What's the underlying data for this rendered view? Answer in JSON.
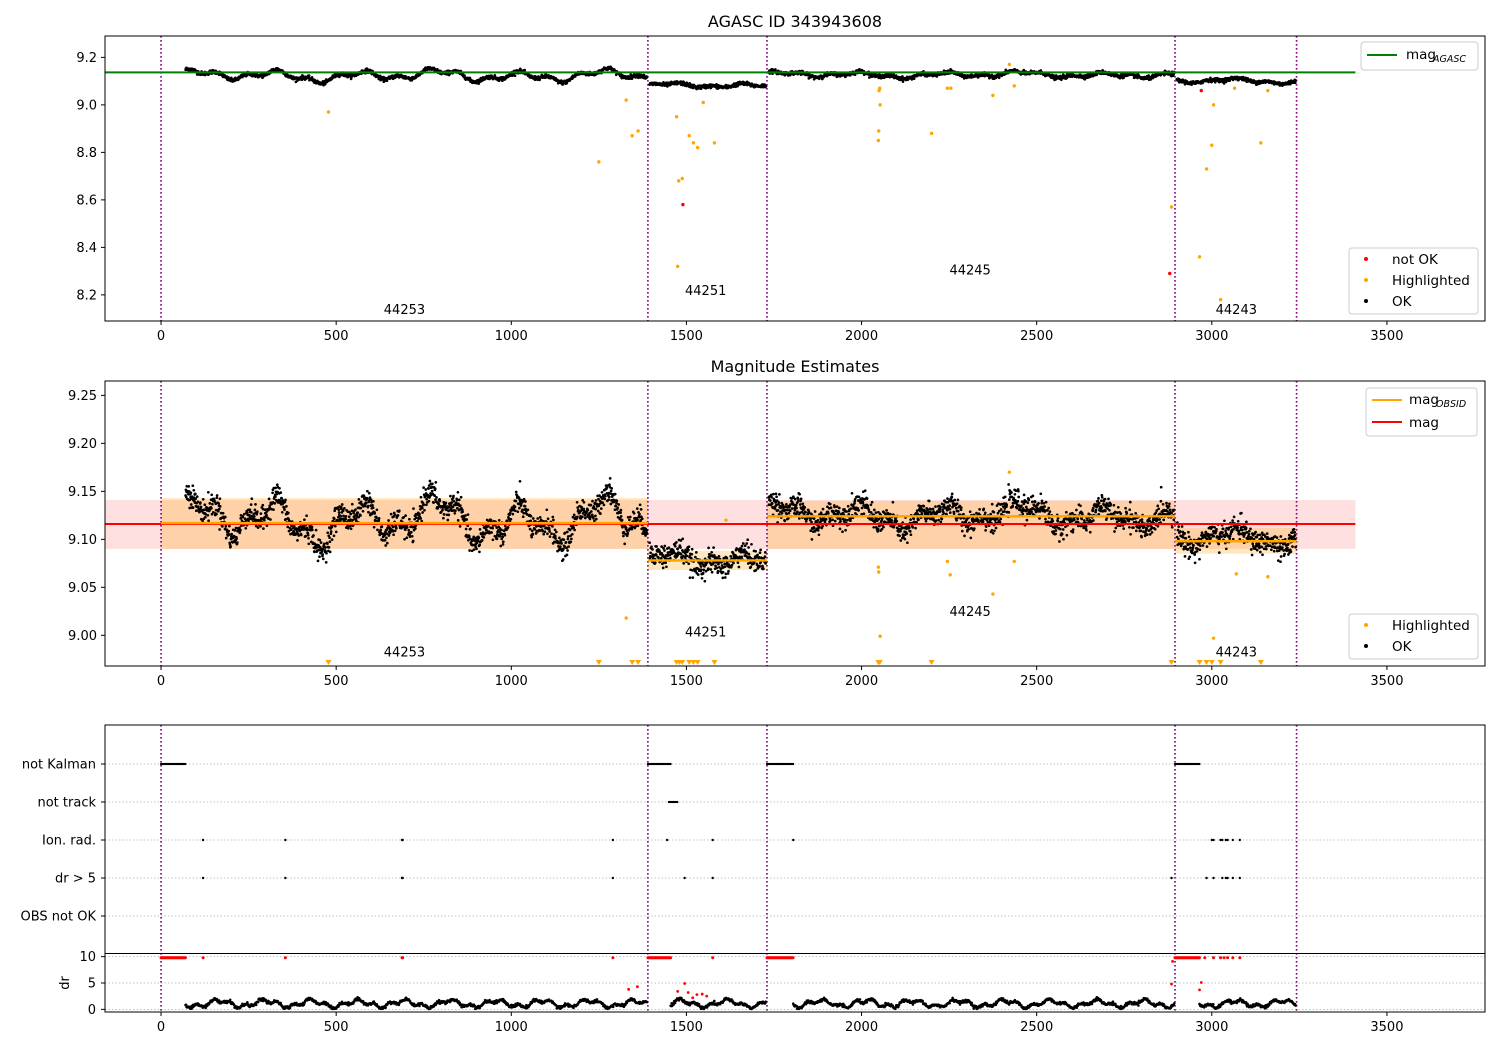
{
  "chart_data": [
    {
      "type": "scatter",
      "title": "AGASC ID 343943608",
      "xlim": [
        -160,
        3780
      ],
      "ylim": [
        8.09,
        9.29
      ],
      "xticks": [
        0,
        500,
        1000,
        1500,
        2000,
        2500,
        3000,
        3500
      ],
      "yticks": [
        8.2,
        8.4,
        8.6,
        8.8,
        9.0,
        9.2
      ],
      "obs_boundaries": [
        0,
        1390,
        1730,
        2895,
        3242
      ],
      "obs_labels": [
        {
          "obsid": "44253",
          "x": 695,
          "y": 8.12
        },
        {
          "obsid": "44251",
          "x": 1555,
          "y": 8.2
        },
        {
          "obsid": "44245",
          "x": 2310,
          "y": 8.285
        },
        {
          "obsid": "44243",
          "x": 3070,
          "y": 8.12
        }
      ],
      "hlines": [
        {
          "name": "mag_AGASC",
          "y": 9.137,
          "x": [
            -160,
            3410
          ],
          "color": "#008000"
        }
      ],
      "segments": [
        {
          "x0": 70,
          "x1": 1388,
          "level": 9.123,
          "amp": 0.03
        },
        {
          "x0": 1395,
          "x1": 1728,
          "level": 9.08,
          "amp": 0.013
        },
        {
          "x0": 1735,
          "x1": 2893,
          "level": 9.127,
          "amp": 0.016
        },
        {
          "x0": 2900,
          "x1": 3240,
          "level": 9.1,
          "amp": 0.013
        }
      ],
      "highlighted": [
        [
          478,
          8.97
        ],
        [
          1250,
          8.76
        ],
        [
          1328,
          9.02
        ],
        [
          1345,
          8.87
        ],
        [
          1362,
          8.89
        ],
        [
          1472,
          8.95
        ],
        [
          1475,
          8.32
        ],
        [
          1478,
          8.68
        ],
        [
          1488,
          8.69
        ],
        [
          1508,
          8.87
        ],
        [
          1520,
          8.84
        ],
        [
          1532,
          8.82
        ],
        [
          1548,
          9.01
        ],
        [
          1580,
          8.84
        ],
        [
          2048,
          8.85
        ],
        [
          2049,
          8.89
        ],
        [
          2050,
          9.06
        ],
        [
          2052,
          9.07
        ],
        [
          2053,
          9.0
        ],
        [
          2200,
          8.88
        ],
        [
          2245,
          9.07
        ],
        [
          2255,
          9.07
        ],
        [
          2375,
          9.04
        ],
        [
          2436,
          9.08
        ],
        [
          2422,
          9.17
        ],
        [
          2885,
          8.57
        ],
        [
          2965,
          8.36
        ],
        [
          2985,
          8.73
        ],
        [
          3000,
          8.83
        ],
        [
          3005,
          9.0
        ],
        [
          3025,
          8.18
        ],
        [
          3065,
          9.07
        ],
        [
          3140,
          8.84
        ],
        [
          3160,
          9.06
        ]
      ],
      "not_ok": [
        [
          1490,
          8.58
        ],
        [
          2880,
          8.29
        ],
        [
          2970,
          9.06
        ]
      ],
      "legend": {
        "position": "lower right",
        "entries": [
          {
            "label": "not OK",
            "color": "#ff0000"
          },
          {
            "label": "Highlighted",
            "color": "#ffa500"
          },
          {
            "label": "OK",
            "color": "#000000"
          }
        ]
      },
      "legend_top": {
        "position": "upper right",
        "entries": [
          {
            "label": "mag",
            "sub": "AGASC",
            "color": "#008000"
          }
        ]
      }
    },
    {
      "type": "scatter",
      "title": "Magnitude Estimates",
      "xlim": [
        -160,
        3780
      ],
      "ylim": [
        8.968,
        9.265
      ],
      "xticks": [
        0,
        500,
        1000,
        1500,
        2000,
        2500,
        3000,
        3500
      ],
      "yticks": [
        9.0,
        9.05,
        9.1,
        9.15,
        9.2,
        9.25
      ],
      "obs_boundaries": [
        0,
        1390,
        1730,
        2895,
        3242
      ],
      "obs_labels": [
        {
          "obsid": "44253",
          "x": 695,
          "y": 8.978
        },
        {
          "obsid": "44251",
          "x": 1555,
          "y": 8.999
        },
        {
          "obsid": "44245",
          "x": 2310,
          "y": 9.02
        },
        {
          "obsid": "44243",
          "x": 3070,
          "y": 8.978
        }
      ],
      "mag": {
        "name": "mag",
        "y": 9.116,
        "band": [
          9.09,
          9.141
        ],
        "x": [
          -160,
          3410
        ],
        "color": "#ff0000"
      },
      "obsid_mags": [
        {
          "x0": 0,
          "x1": 1390,
          "y": 9.117,
          "band": [
            9.09,
            9.143
          ]
        },
        {
          "x0": 1390,
          "x1": 1730,
          "y": 9.078,
          "band": [
            9.068,
            9.088
          ]
        },
        {
          "x0": 1730,
          "x1": 2895,
          "y": 9.124,
          "band": [
            9.09,
            9.14
          ]
        },
        {
          "x0": 2895,
          "x1": 3242,
          "y": 9.098,
          "band": [
            9.085,
            9.112
          ]
        }
      ],
      "segments": [
        {
          "x0": 70,
          "x1": 1388,
          "level": 9.12,
          "amp": 0.03
        },
        {
          "x0": 1395,
          "x1": 1728,
          "level": 9.077,
          "amp": 0.013
        },
        {
          "x0": 1735,
          "x1": 2893,
          "level": 9.125,
          "amp": 0.016
        },
        {
          "x0": 2900,
          "x1": 3240,
          "level": 9.1,
          "amp": 0.012
        }
      ],
      "highlighted": [
        [
          1328,
          9.018
        ],
        [
          2048,
          9.071
        ],
        [
          2049,
          9.066
        ],
        [
          2053,
          8.999
        ],
        [
          2245,
          9.077
        ],
        [
          2253,
          9.063
        ],
        [
          2375,
          9.043
        ],
        [
          2436,
          9.077
        ],
        [
          2422,
          9.17
        ],
        [
          3005,
          8.997
        ],
        [
          3070,
          9.064
        ],
        [
          3160,
          9.061
        ],
        [
          1613,
          9.12
        ]
      ],
      "below_axis": [
        478,
        1250,
        1345,
        1362,
        1472,
        1480,
        1488,
        1508,
        1520,
        1532,
        1580,
        2048,
        2052,
        2200,
        2885,
        2965,
        2985,
        3000,
        3025,
        3140
      ],
      "legend": {
        "position": "lower right",
        "entries": [
          {
            "label": "Highlighted",
            "color": "#ffa500"
          },
          {
            "label": "OK",
            "color": "#000000"
          }
        ]
      },
      "legend_top": {
        "position": "upper right",
        "entries": [
          {
            "label": "mag",
            "sub": "OBSID",
            "color": "#ffa500"
          },
          {
            "label": "mag",
            "sub": "",
            "color": "#ff0000"
          }
        ]
      }
    },
    {
      "type": "scatter",
      "title": "",
      "xlim": [
        -160,
        3780
      ],
      "xticks": [
        0,
        500,
        1000,
        1500,
        2000,
        2500,
        3000,
        3500
      ],
      "obs_boundaries": [
        0,
        1390,
        1730,
        2895,
        3242
      ],
      "flag_rows": [
        "not Kalman",
        "not track",
        "Ion. rad.",
        "dr > 5",
        "OBS not OK"
      ],
      "flags": {
        "not Kalman": [
          [
            0,
            70
          ],
          [
            1390,
            1455
          ],
          [
            1730,
            1805
          ],
          [
            2895,
            2965
          ]
        ],
        "not track": [
          [
            1450,
            1475
          ]
        ],
        "Ion. rad.": [
          120,
          355,
          688,
          690,
          1290,
          1445,
          1575,
          1805,
          3000,
          3005,
          3025,
          3030,
          3040,
          3045,
          3060,
          3080
        ],
        "dr > 5": [
          120,
          355,
          688,
          690,
          1290,
          1495,
          1575,
          2885,
          2985,
          3005,
          3030,
          3040,
          3045,
          3060,
          3080
        ],
        "OBS not OK": []
      },
      "dr_ylabel": "dr",
      "dr_yticks": [
        0,
        5,
        10
      ],
      "dr_ylim": [
        -0.5,
        10.5
      ],
      "dr_segments": [
        [
          70,
          1388
        ],
        [
          1455,
          1728
        ],
        [
          1805,
          2893
        ],
        [
          2965,
          3240
        ]
      ],
      "dr_clipped": [
        [
          0,
          70
        ],
        [
          1390,
          1455
        ],
        [
          1730,
          1805
        ],
        [
          2895,
          2965
        ],
        120,
        355,
        688,
        690,
        1290,
        1575,
        2980,
        3005,
        3025,
        3035,
        3045,
        3060,
        3080
      ],
      "dr_red": [
        [
          1335,
          3.8
        ],
        [
          1360,
          4.3
        ],
        [
          1475,
          3.4
        ],
        [
          1495,
          4.9
        ],
        [
          1505,
          3.2
        ],
        [
          1518,
          2.2
        ],
        [
          1530,
          2.8
        ],
        [
          1545,
          2.9
        ],
        [
          1558,
          2.5
        ],
        [
          2888,
          9.1
        ],
        [
          2885,
          4.8
        ],
        [
          2965,
          3.7
        ],
        [
          2970,
          5.1
        ]
      ]
    }
  ]
}
